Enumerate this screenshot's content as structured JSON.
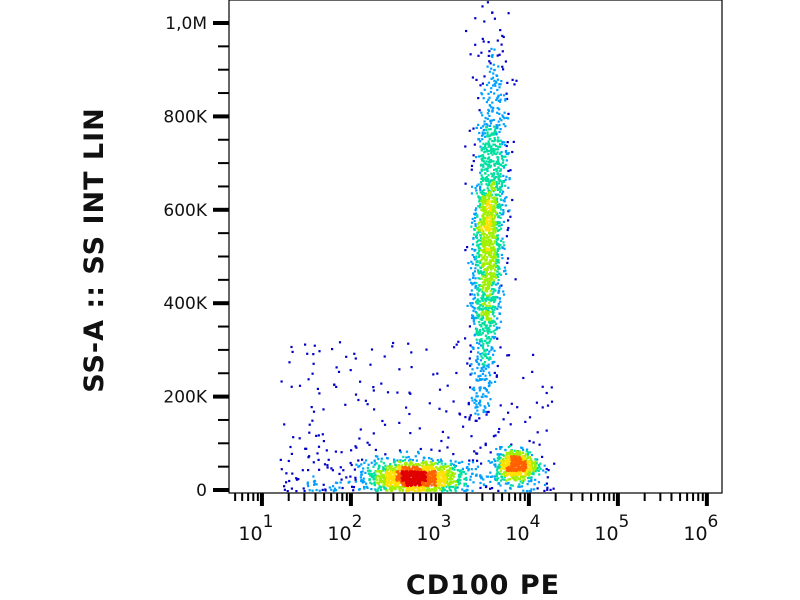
{
  "chart_data": {
    "type": "scatter",
    "subtype": "flow-cytometry density dot plot",
    "xlabel": "CD100 PE",
    "ylabel": "SS-A :: SS INT LIN",
    "xscale": "log",
    "xlim_log10": [
      0.63,
      6.17
    ],
    "ylim": [
      0,
      1050000
    ],
    "x_ticks": [
      {
        "base": "10",
        "exp": "1",
        "log10": 1
      },
      {
        "base": "10",
        "exp": "2",
        "log10": 2
      },
      {
        "base": "10",
        "exp": "3",
        "log10": 3
      },
      {
        "base": "10",
        "exp": "4",
        "log10": 4
      },
      {
        "base": "10",
        "exp": "5",
        "log10": 5
      },
      {
        "base": "10",
        "exp": "6",
        "log10": 6
      }
    ],
    "y_ticks": [
      {
        "label": "0",
        "value": 0
      },
      {
        "label": "200K",
        "value": 200000
      },
      {
        "label": "400K",
        "value": 400000
      },
      {
        "label": "600K",
        "value": 600000
      },
      {
        "label": "800K",
        "value": 800000
      },
      {
        "label": "1,0M",
        "value": 1000000
      }
    ],
    "populations": [
      {
        "name": "CD100-low SSC-low cluster",
        "log10x_center": 2.7,
        "log10x_sd": 0.28,
        "y_center": 30000,
        "y_sd": 14000,
        "events": 1300
      },
      {
        "name": "CD100+ SSC-low cluster",
        "log10x_center": 3.85,
        "log10x_sd": 0.12,
        "y_center": 55000,
        "y_sd": 18000,
        "events": 550
      },
      {
        "name": "CD100+ SSC-high stream",
        "log10x_start": 3.38,
        "log10x_end": 3.62,
        "y_start": 150000,
        "y_end": 1050000,
        "y_peak": 550000,
        "log10x_sd": 0.07,
        "events": 1700
      },
      {
        "name": "diffuse background",
        "log10x_range": [
          1.2,
          4.3
        ],
        "y_range": [
          0,
          320000
        ],
        "events": 350
      }
    ],
    "colormap": [
      "#0000c8",
      "#00a0ff",
      "#00e0a0",
      "#a0f000",
      "#ffe000",
      "#ff6000",
      "#e00000"
    ]
  }
}
